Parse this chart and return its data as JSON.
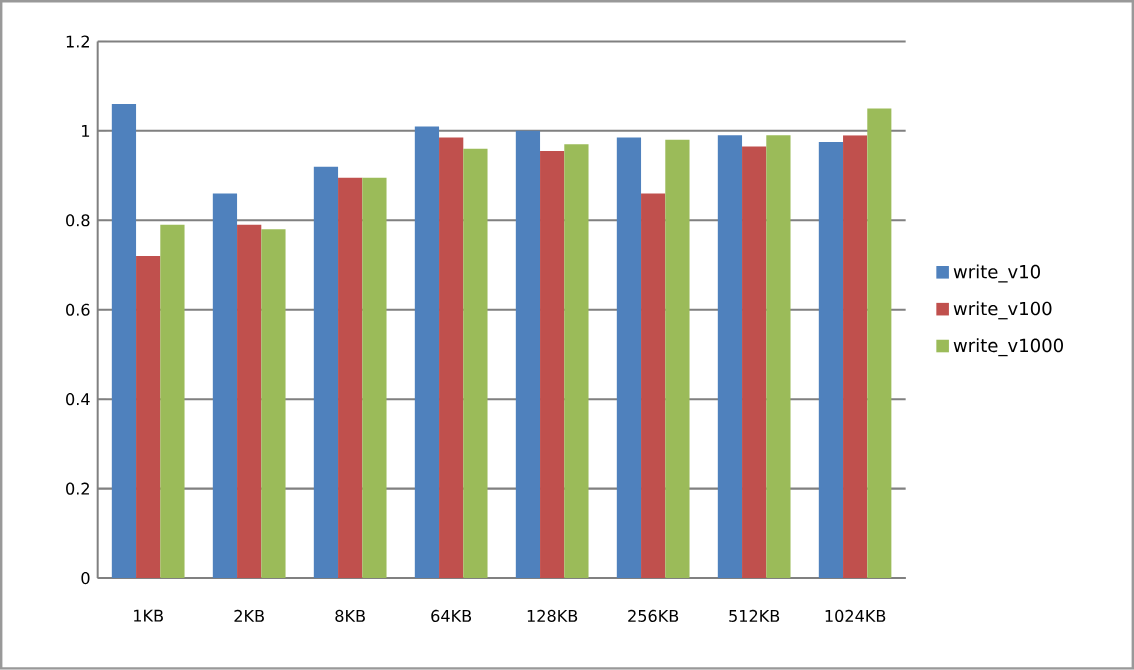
{
  "chart_data": {
    "type": "bar",
    "categories": [
      "1KB",
      "2KB",
      "8KB",
      "64KB",
      "128KB",
      "256KB",
      "512KB",
      "1024KB"
    ],
    "series": [
      {
        "name": "write_v10",
        "color": "#4f81bd",
        "values": [
          1.06,
          0.86,
          0.92,
          1.01,
          1.0,
          0.985,
          0.99,
          0.975
        ]
      },
      {
        "name": "write_v100",
        "color": "#c0504d",
        "values": [
          0.72,
          0.79,
          0.895,
          0.985,
          0.955,
          0.86,
          0.965,
          0.99
        ]
      },
      {
        "name": "write_v1000",
        "color": "#9bbb59",
        "values": [
          0.79,
          0.78,
          0.895,
          0.96,
          0.97,
          0.98,
          0.99,
          1.05
        ]
      }
    ],
    "ylim": [
      0,
      1.2
    ],
    "yticks": [
      0,
      0.2,
      0.4,
      0.6,
      0.8,
      1,
      1.2
    ],
    "grid": "y",
    "legend": "right"
  }
}
